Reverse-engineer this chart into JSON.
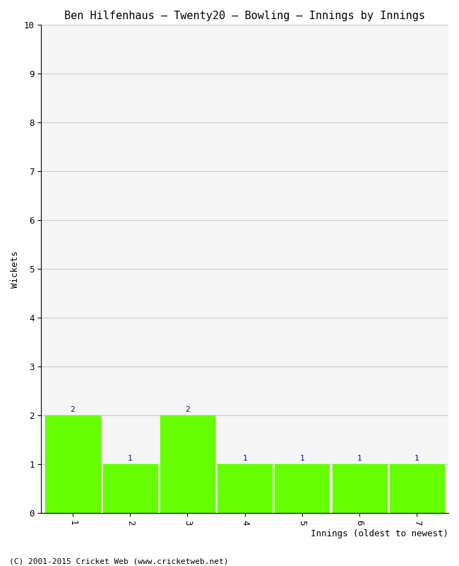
{
  "title": "Ben Hilfenhaus – Twenty20 – Bowling – Innings by Innings",
  "xlabel": "Innings (oldest to newest)",
  "ylabel": "Wickets",
  "categories": [
    "1",
    "2",
    "3",
    "4",
    "5",
    "6",
    "7"
  ],
  "values": [
    2,
    1,
    2,
    1,
    1,
    1,
    1
  ],
  "bar_color": "#66ff00",
  "bar_edge_color": "#66ff00",
  "ylim": [
    0,
    10
  ],
  "yticks": [
    0,
    1,
    2,
    3,
    4,
    5,
    6,
    7,
    8,
    9,
    10
  ],
  "label_color": "#0000cc",
  "label_fontsize": 8,
  "title_fontsize": 11,
  "axis_label_fontsize": 9,
  "tick_fontsize": 9,
  "background_color": "#ffffff",
  "plot_bg_color": "#f5f5f5",
  "grid_color": "#cccccc",
  "footer": "(C) 2001-2015 Cricket Web (www.cricketweb.net)",
  "footer_fontsize": 8
}
